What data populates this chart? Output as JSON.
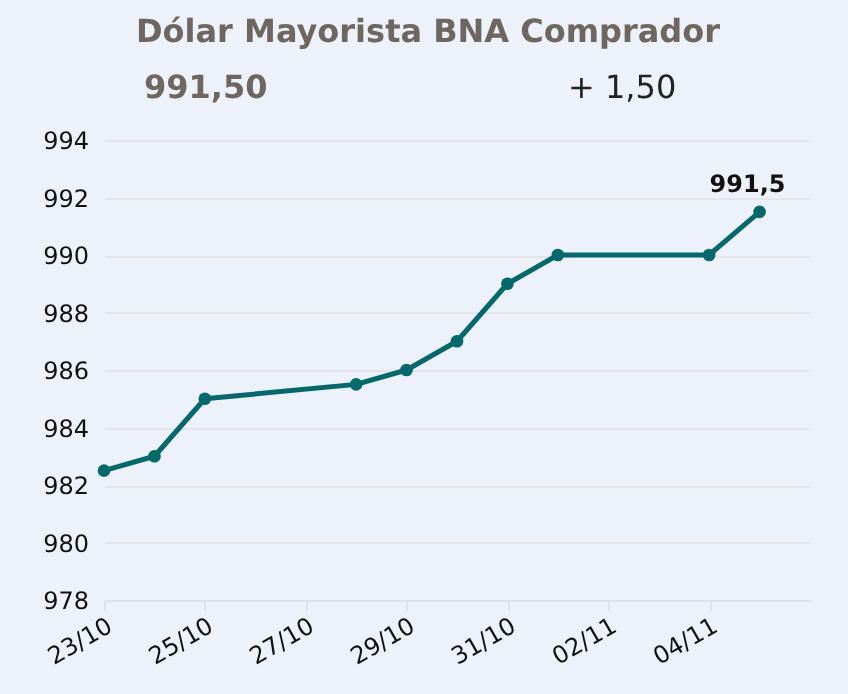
{
  "chart_data": {
    "type": "line",
    "title": "Dólar Mayorista BNA Comprador",
    "annotations": [
      "991,50",
      "+ 1,50"
    ],
    "x": [
      "--10-23",
      "--10-24",
      "--10-25",
      "--10-28",
      "--10-29",
      "--10-30",
      "--10-31",
      "--11-01",
      "--11-04",
      "--11-05"
    ],
    "series": [
      {
        "color": "#00696b",
        "values": [
          982.5,
          983,
          985,
          985.5,
          986,
          987,
          989,
          990,
          990,
          991.5
        ],
        "value_labels": [
          null,
          null,
          null,
          null,
          null,
          null,
          null,
          null,
          null,
          "991,5"
        ]
      }
    ],
    "xlim": [
      "--10-23",
      "--11-06"
    ],
    "xticks": [
      {
        "value": "--10-23",
        "label": "23/10"
      },
      {
        "value": "--10-25",
        "label": "25/10"
      },
      {
        "value": "--10-27",
        "label": "27/10"
      },
      {
        "value": "--10-29",
        "label": "29/10"
      },
      {
        "value": "--10-31",
        "label": "31/10"
      },
      {
        "value": "--11-02",
        "label": "02/11"
      },
      {
        "value": "--11-04",
        "label": "04/11"
      }
    ],
    "ylim": [
      978,
      994
    ],
    "yticks": [
      978,
      980,
      982,
      984,
      986,
      988,
      990,
      992,
      994
    ],
    "grid": "y",
    "marker": "circle",
    "line_style": "solid"
  }
}
